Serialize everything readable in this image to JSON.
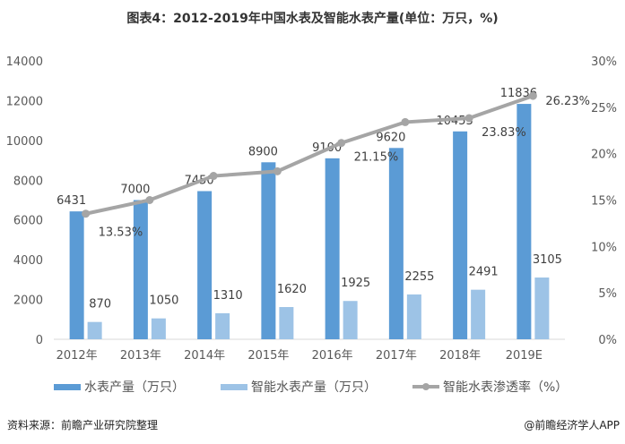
{
  "chart_data": {
    "type": "bar",
    "title": "图表4：2012-2019年中国水表及智能水表产量(单位：万只，%)",
    "categories": [
      "2012年",
      "2013年",
      "2014年",
      "2015年",
      "2016年",
      "2017年",
      "2018年",
      "2019E"
    ],
    "series": [
      {
        "name": "水表产量（万只）",
        "type": "bar",
        "axis": "left",
        "color": "#5b9bd5",
        "values": [
          6431,
          7000,
          7450,
          8900,
          9100,
          9620,
          10453,
          11836
        ]
      },
      {
        "name": "智能水表产量（万只）",
        "type": "bar",
        "axis": "left",
        "color": "#9dc3e6",
        "values": [
          870,
          1050,
          1310,
          1620,
          1925,
          2255,
          2491,
          3105
        ]
      },
      {
        "name": "智能水表渗透率（%）",
        "type": "line",
        "axis": "right",
        "color": "#a5a5a5",
        "values": [
          13.53,
          15.0,
          17.6,
          18.1,
          21.15,
          23.4,
          23.83,
          26.23
        ],
        "labels": [
          "13.53%",
          "",
          "",
          "",
          "21.15%",
          "",
          "23.83%",
          "26.23%"
        ]
      }
    ],
    "yleft": {
      "lim": [
        0,
        14000
      ],
      "ticks": [
        "0",
        "2000",
        "4000",
        "6000",
        "8000",
        "10000",
        "12000",
        "14000"
      ]
    },
    "yright": {
      "lim": [
        0,
        30
      ],
      "ticks": [
        "0%",
        "5%",
        "10%",
        "15%",
        "20%",
        "25%",
        "30%"
      ]
    },
    "grid": false,
    "legend": "bottom"
  },
  "source": "资料来源：前瞻产业研究院整理",
  "credit": "@前瞻经济学人APP"
}
